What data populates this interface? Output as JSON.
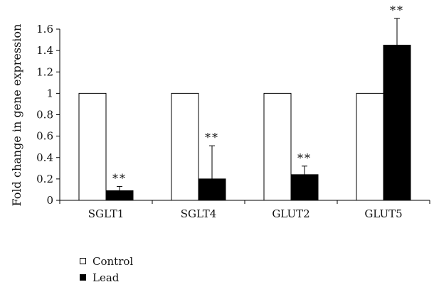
{
  "chart_data": {
    "type": "bar",
    "ylabel": "Fold change in gene expression",
    "ylim": [
      0,
      1.6
    ],
    "yticks": [
      0,
      0.2,
      0.4,
      0.6,
      0.8,
      1,
      1.2,
      1.4,
      1.6
    ],
    "categories": [
      "SGLT1",
      "SGLT4",
      "GLUT2",
      "GLUT5"
    ],
    "series": [
      {
        "name": "Control",
        "color": "#ffffff",
        "values": [
          1,
          1,
          1,
          1
        ]
      },
      {
        "name": "Lead",
        "color": "#000000",
        "values": [
          0.09,
          0.2,
          0.24,
          1.45
        ],
        "errors": [
          0.04,
          0.31,
          0.08,
          0.25
        ]
      }
    ],
    "annotations": [
      {
        "category": "SGLT1",
        "text": "**"
      },
      {
        "category": "SGLT4",
        "text": "**"
      },
      {
        "category": "GLUT2",
        "text": "**"
      },
      {
        "category": "GLUT5",
        "text": "**"
      }
    ],
    "legend": "bottom-left",
    "grid": false
  }
}
